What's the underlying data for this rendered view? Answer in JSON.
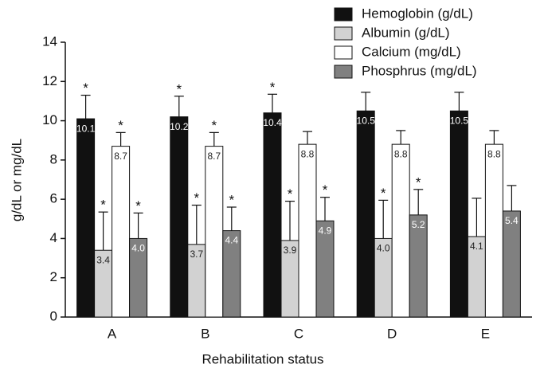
{
  "chart_data": {
    "type": "bar",
    "xlabel": "Rehabilitation status",
    "ylabel": "g/dL or mg/dL",
    "categories": [
      "A",
      "B",
      "C",
      "D",
      "E"
    ],
    "series": [
      {
        "name": "Hemoglobin (g/dL)",
        "color": "#111111",
        "values": [
          10.1,
          10.2,
          10.4,
          10.5,
          10.5
        ],
        "value_labels": [
          "10.1",
          "10.2",
          "10.4",
          "10.5",
          "10.5"
        ],
        "errors": [
          1.2,
          1.05,
          0.95,
          0.95,
          0.95
        ],
        "markers": [
          "*",
          "*",
          "*",
          null,
          null
        ]
      },
      {
        "name": "Albumin  (g/dL)",
        "color": "#d2d2d2",
        "values": [
          3.4,
          3.7,
          3.9,
          4.0,
          4.1
        ],
        "value_labels": [
          "3.4",
          "3.7",
          "3.9",
          "4.0",
          "4.1"
        ],
        "errors": [
          1.95,
          2.0,
          2.0,
          1.95,
          1.95
        ],
        "markers": [
          "*",
          "*",
          "*",
          "*",
          null
        ]
      },
      {
        "name": "Calcium  (mg/dL)",
        "color": "#ffffff",
        "values": [
          8.7,
          8.7,
          8.8,
          8.8,
          8.8
        ],
        "value_labels": [
          "8.7",
          "8.7",
          "8.8",
          "8.8",
          "8.8"
        ],
        "errors": [
          0.7,
          0.7,
          0.65,
          0.7,
          0.7
        ],
        "markers": [
          "*",
          "*",
          null,
          null,
          null
        ]
      },
      {
        "name": "Phosphrus  (mg/dL)",
        "color": "#808080",
        "values": [
          4.0,
          4.4,
          4.9,
          5.2,
          5.4
        ],
        "value_labels": [
          "4.0",
          "4.4",
          "4.9",
          "5.2",
          "5.4"
        ],
        "errors": [
          1.3,
          1.2,
          1.2,
          1.3,
          1.3
        ],
        "markers": [
          "*",
          "*",
          "*",
          "*",
          null
        ]
      }
    ],
    "ylim": [
      0,
      14
    ],
    "yticks": [
      0,
      2,
      4,
      6,
      8,
      10,
      12,
      14
    ],
    "grid": false,
    "legend": "upper right"
  }
}
